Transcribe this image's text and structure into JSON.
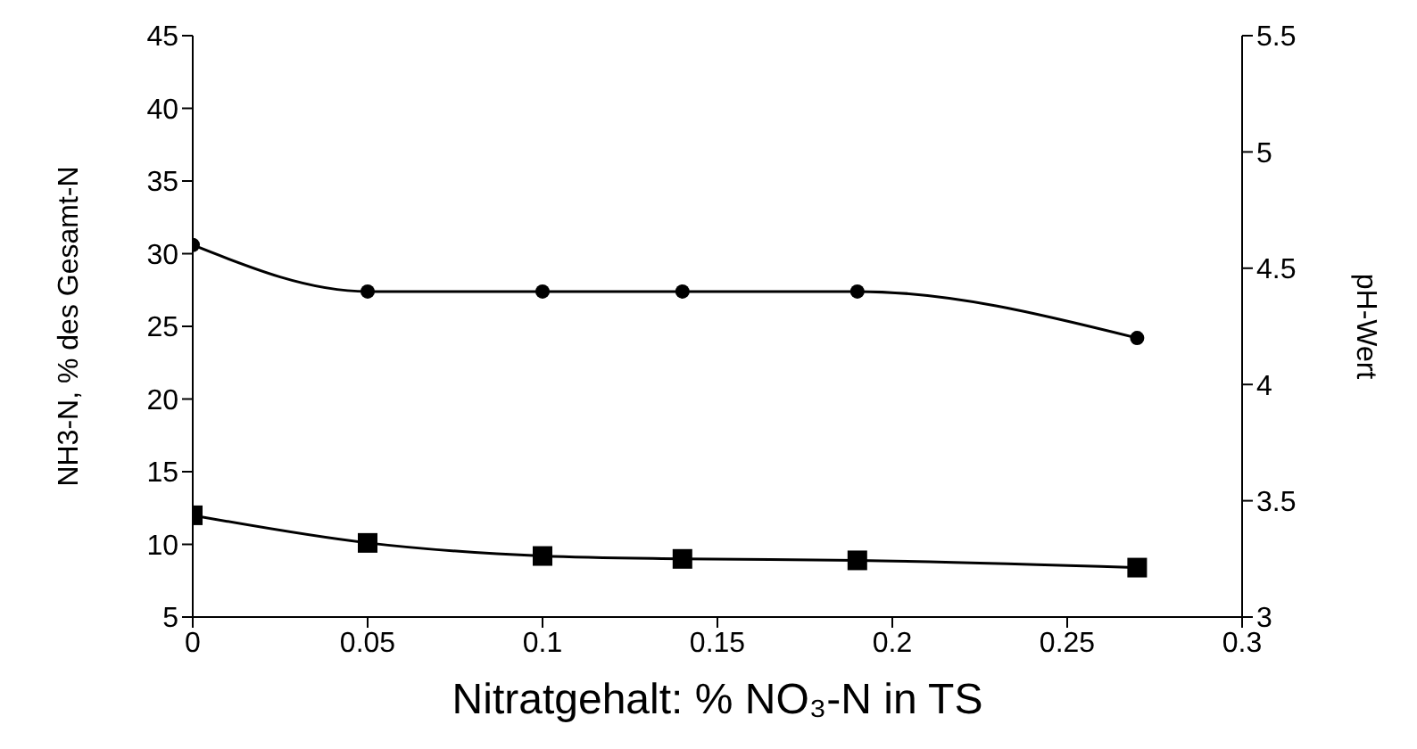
{
  "chart_data": {
    "type": "line",
    "xlabel": "Nitratgehalt: % NO₃-N in TS",
    "ylabel": "NH3-N, % des Gesamt-N",
    "y2label": "pH-Wert",
    "x": [
      0,
      0.05,
      0.1,
      0.14,
      0.19,
      0.27
    ],
    "series": [
      {
        "color": "#000000",
        "axis": "y2",
        "marker": "circle",
        "values": [
          4.6,
          4.4,
          4.4,
          4.4,
          4.4,
          4.2
        ]
      },
      {
        "color": "#000000",
        "marker": "square",
        "values": [
          12,
          10.1,
          9.2,
          9.0,
          8.9,
          8.4
        ]
      }
    ],
    "xlim": [
      0,
      0.3
    ],
    "xticks": [
      0,
      0.05,
      0.1,
      0.15,
      0.2,
      0.25,
      0.3
    ],
    "ylim": [
      5,
      45
    ],
    "yticks": [
      5,
      10,
      15,
      20,
      25,
      30,
      35,
      40,
      45
    ],
    "y2lim": [
      3,
      5.5
    ],
    "y2ticks": [
      3,
      3.5,
      4,
      4.5,
      5,
      5.5
    ],
    "line_style": "solid"
  }
}
